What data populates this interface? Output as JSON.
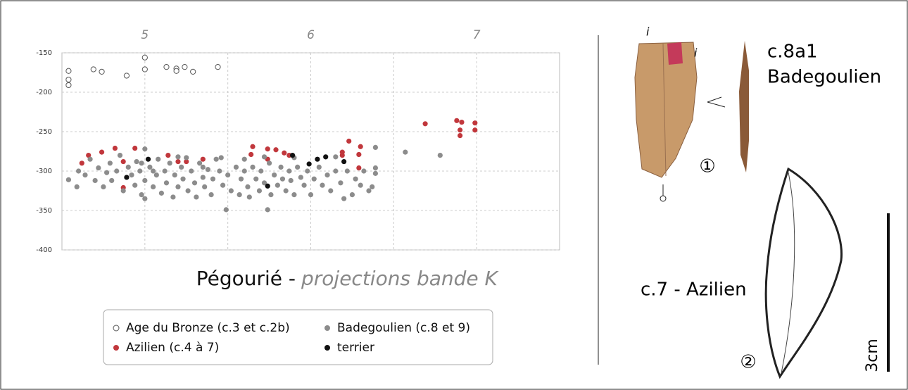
{
  "chart_data": {
    "type": "scatter",
    "title": "Pégourié -",
    "subtitle": "projections bande K",
    "xlim": [
      4.5,
      7.5
    ],
    "xticks": [
      5,
      6,
      7
    ],
    "xminor_grid": [
      5.5,
      6.5
    ],
    "xaxis_position": "top",
    "ylim": [
      -400,
      -150
    ],
    "yticks": [
      -150,
      -200,
      -250,
      -300,
      -350,
      -400
    ],
    "grid": true,
    "series": [
      {
        "name": "Age du Bronze (c.3 et c.2b)",
        "color": "#555555",
        "marker": "open",
        "x": [
          4.54,
          4.54,
          4.54,
          4.69,
          4.74,
          4.89,
          5.0,
          5.0,
          5.13,
          5.19,
          5.19,
          5.24,
          5.29,
          5.44
        ],
        "values": [
          -173,
          -184,
          -191,
          -171,
          -174,
          -179,
          -156,
          -171,
          -168,
          -170,
          -173,
          -168,
          -174,
          -168
        ]
      },
      {
        "name": "Azilien (c.4 à 7)",
        "color": "#c1373c",
        "marker": "filled",
        "x": [
          4.62,
          4.66,
          4.74,
          4.82,
          4.87,
          4.87,
          4.94,
          5.14,
          5.2,
          5.25,
          5.35,
          5.64,
          5.65,
          5.74,
          5.74,
          5.79,
          5.84,
          5.87,
          6.19,
          6.19,
          6.23,
          6.29,
          6.3,
          6.29,
          6.69,
          6.88,
          6.9,
          6.9,
          6.99,
          6.99,
          6.91
        ],
        "values": [
          -290,
          -280,
          -276,
          -271,
          -288,
          -321,
          -271,
          -280,
          -288,
          -288,
          -285,
          -279,
          -269,
          -272,
          -285,
          -273,
          -277,
          -280,
          -276,
          -280,
          -262,
          -279,
          -269,
          -296,
          -240,
          -236,
          -248,
          -255,
          -239,
          -248,
          -238
        ]
      },
      {
        "name": "Badegoulien (c.8 et 9)",
        "color": "#8c8c8c",
        "marker": "filled",
        "x": [
          4.54,
          4.59,
          4.6,
          4.64,
          4.67,
          4.7,
          4.72,
          4.75,
          4.77,
          4.79,
          4.8,
          4.83,
          4.85,
          4.87,
          4.9,
          4.92,
          4.94,
          4.95,
          4.97,
          4.98,
          5.0,
          5.0,
          5.0,
          5.03,
          5.05,
          5.07,
          5.08,
          5.1,
          5.12,
          5.13,
          5.15,
          5.17,
          5.18,
          5.2,
          5.22,
          5.23,
          5.25,
          5.26,
          5.28,
          5.3,
          5.31,
          5.33,
          5.35,
          5.36,
          5.38,
          5.4,
          5.41,
          5.43,
          5.45,
          5.47,
          5.49,
          5.5,
          5.52,
          5.55,
          5.57,
          5.58,
          5.6,
          5.62,
          5.63,
          5.65,
          5.67,
          5.69,
          5.7,
          5.72,
          5.74,
          5.75,
          5.76,
          5.78,
          5.8,
          5.82,
          5.83,
          5.85,
          5.87,
          5.88,
          5.9,
          5.92,
          5.94,
          5.96,
          5.98,
          6.0,
          6.02,
          6.05,
          6.07,
          6.1,
          6.12,
          6.15,
          6.18,
          6.2,
          6.22,
          6.25,
          6.27,
          6.3,
          6.32,
          6.35,
          6.37,
          6.39,
          6.39,
          6.39,
          6.57,
          6.78,
          4.98,
          5.05,
          5.2,
          5.35,
          5.46,
          5.6,
          5.72,
          5.9,
          6.15
        ],
        "values": [
          -311,
          -320,
          -300,
          -305,
          -285,
          -312,
          -296,
          -320,
          -302,
          -290,
          -312,
          -300,
          -280,
          -325,
          -295,
          -305,
          -318,
          -288,
          -300,
          -330,
          -272,
          -312,
          -335,
          -295,
          -320,
          -305,
          -285,
          -328,
          -300,
          -315,
          -290,
          -333,
          -305,
          -320,
          -295,
          -310,
          -283,
          -325,
          -300,
          -315,
          -333,
          -290,
          -308,
          -320,
          -298,
          -330,
          -310,
          -285,
          -300,
          -318,
          -349,
          -305,
          -325,
          -295,
          -330,
          -310,
          -300,
          -320,
          -333,
          -295,
          -310,
          -325,
          -300,
          -315,
          -349,
          -290,
          -330,
          -305,
          -318,
          -295,
          -310,
          -325,
          -300,
          -312,
          -330,
          -295,
          -308,
          -318,
          -300,
          -330,
          -310,
          -295,
          -318,
          -305,
          -325,
          -300,
          -315,
          -335,
          -300,
          -330,
          -310,
          -318,
          -300,
          -325,
          -320,
          -270,
          -296,
          -303,
          -276,
          -280,
          -290,
          -300,
          -282,
          -295,
          -283,
          -285,
          -282,
          -283,
          -282
        ]
      },
      {
        "name": "terrier",
        "color": "#111111",
        "marker": "filled",
        "x": [
          4.89,
          5.02,
          5.74,
          5.89,
          5.99,
          6.04,
          6.09,
          6.2
        ],
        "values": [
          -308,
          -285,
          -319,
          -280,
          -291,
          -285,
          -282,
          -288
        ]
      }
    ]
  },
  "figure": {
    "mark_top": "i",
    "mark_side": "i",
    "layer_label": "c.8a1",
    "culture": "Badegoulien",
    "number_1": "①",
    "number_2": "②",
    "azilien_label": "c.7 - Azilien",
    "scale_label": "3cm"
  }
}
